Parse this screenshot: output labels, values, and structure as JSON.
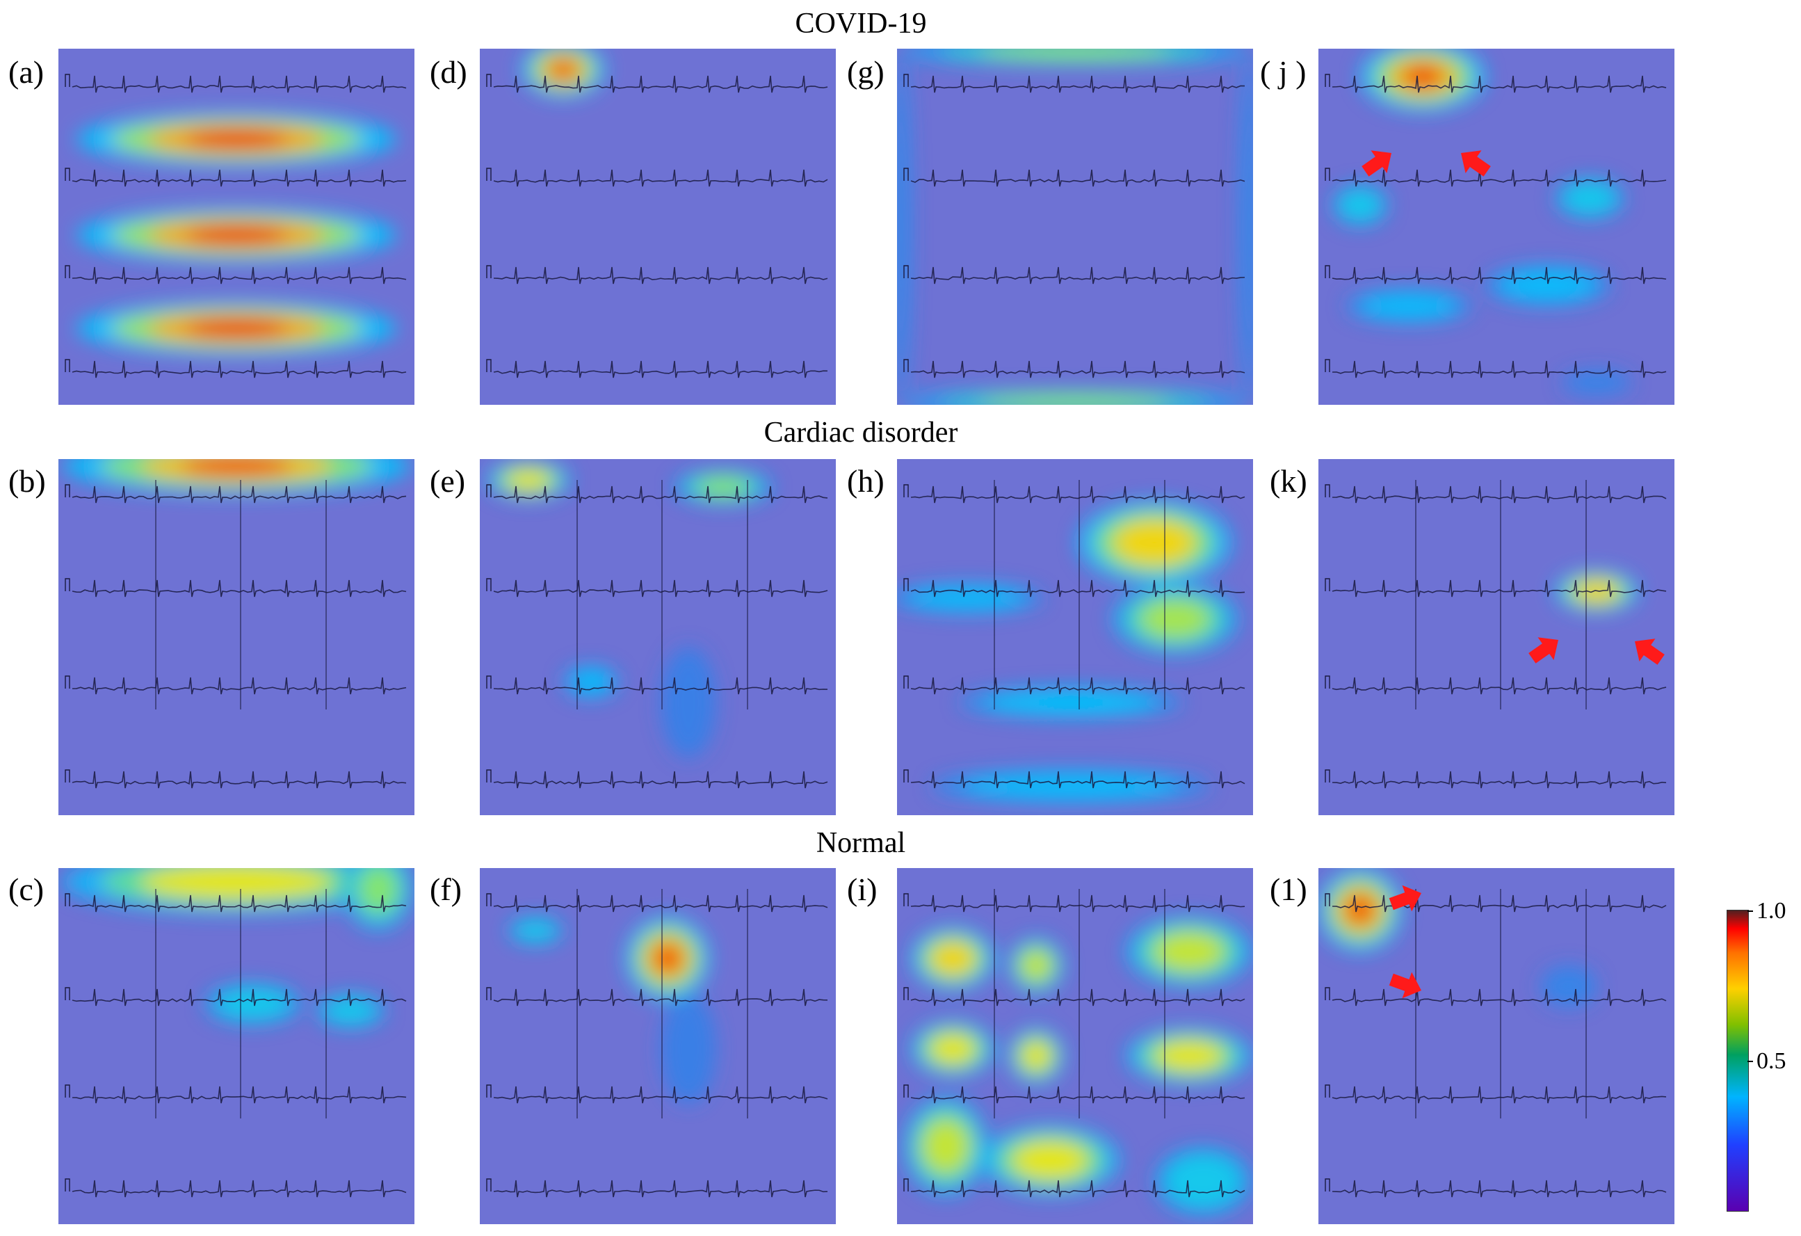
{
  "figure": {
    "rows": [
      {
        "title": "COVID-19",
        "panels": [
          "(a)",
          "(d)",
          "(g)",
          "( j )"
        ]
      },
      {
        "title": "Cardiac disorder",
        "panels": [
          "(b)",
          "(e)",
          "(h)",
          "(k)"
        ]
      },
      {
        "title": "Normal",
        "panels": [
          "(c)",
          "(f)",
          "(i)",
          "(1)"
        ]
      }
    ],
    "colorbar": {
      "max_label": "1.0",
      "mid_label": "0.5"
    },
    "colors": {
      "background": "#6b6fd2",
      "trace": "#1a1a40",
      "arrow": "#ff1a1a"
    }
  }
}
